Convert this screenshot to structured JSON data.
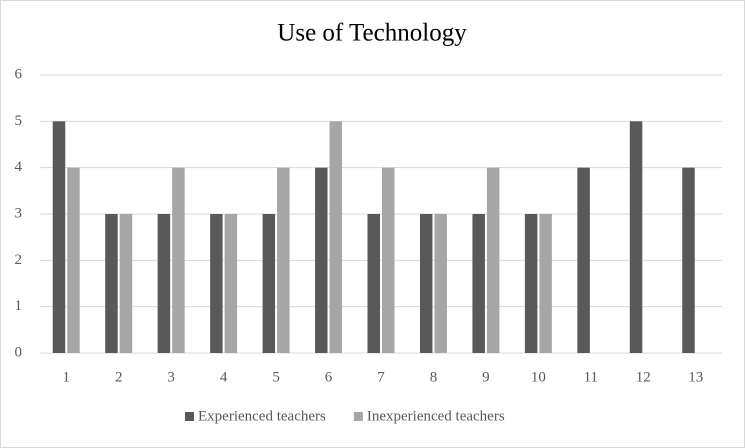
{
  "chart_data": {
    "type": "bar",
    "title": "Use of Technology",
    "categories": [
      "1",
      "2",
      "3",
      "4",
      "5",
      "6",
      "7",
      "8",
      "9",
      "10",
      "11",
      "12",
      "13"
    ],
    "series": [
      {
        "name": "Experienced teachers",
        "color": "#595959",
        "values": [
          5,
          3,
          3,
          3,
          3,
          4,
          3,
          3,
          3,
          3,
          4,
          5,
          4
        ]
      },
      {
        "name": "Inexperienced teachers",
        "color": "#a6a6a6",
        "values": [
          4,
          3,
          4,
          3,
          4,
          5,
          4,
          3,
          4,
          3,
          null,
          null,
          null
        ]
      }
    ],
    "ylim": [
      0,
      6
    ],
    "yticks": [
      0,
      1,
      2,
      3,
      4,
      5,
      6
    ],
    "grid": true,
    "legend": "bottom"
  }
}
